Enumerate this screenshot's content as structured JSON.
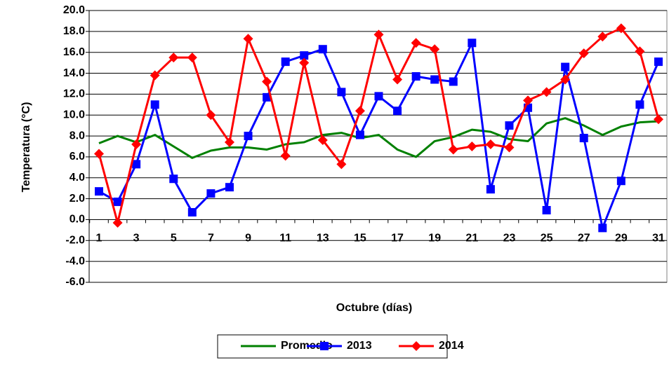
{
  "chart_data": {
    "type": "line",
    "y_label": "Temperatura (°C)",
    "x_label": "Octubre (días)",
    "categories": [
      "1",
      null,
      "3",
      null,
      "5",
      null,
      "7",
      null,
      "9",
      null,
      "11",
      null,
      "13",
      null,
      "15",
      null,
      "17",
      null,
      "19",
      null,
      "21",
      null,
      "23",
      null,
      "25",
      null,
      "27",
      null,
      "29",
      null,
      "31"
    ],
    "series": [
      {
        "name": "Promedio",
        "color": "#008000",
        "marker": "none",
        "values": [
          7.3,
          8.0,
          7.4,
          8.1,
          7.0,
          5.9,
          6.6,
          6.9,
          6.9,
          6.7,
          7.2,
          7.4,
          8.1,
          8.3,
          7.8,
          8.1,
          6.7,
          6.0,
          7.5,
          7.9,
          8.6,
          8.4,
          7.7,
          7.5,
          9.2,
          9.7,
          9.0,
          8.1,
          8.9,
          9.3,
          9.4
        ]
      },
      {
        "name": "2013",
        "color": "#0000ff",
        "marker": "square",
        "values": [
          2.7,
          1.7,
          5.3,
          11.0,
          3.9,
          0.7,
          2.5,
          3.1,
          8.0,
          11.7,
          15.1,
          15.7,
          16.3,
          12.2,
          8.1,
          11.8,
          10.4,
          13.7,
          13.4,
          13.2,
          16.9,
          2.9,
          9.0,
          10.7,
          0.9,
          14.6,
          7.8,
          -0.8,
          3.7,
          11.0,
          15.1
        ]
      },
      {
        "name": "2014",
        "color": "#ff0000",
        "marker": "diamond",
        "values": [
          6.3,
          -0.3,
          7.2,
          13.8,
          15.5,
          15.5,
          10.0,
          7.4,
          17.3,
          13.2,
          6.1,
          15.0,
          7.6,
          5.3,
          10.4,
          17.7,
          13.4,
          16.9,
          16.3,
          6.7,
          7.0,
          7.2,
          6.9,
          11.4,
          12.2,
          13.4,
          15.9,
          17.5,
          18.3,
          16.1,
          9.6
        ]
      }
    ],
    "ylim": [
      -6,
      20
    ],
    "yticks": [
      {
        "value": -6,
        "label": "-6.0"
      },
      {
        "value": -4,
        "label": "-4.0"
      },
      {
        "value": -2,
        "label": "-2.0"
      },
      {
        "value": 0,
        "label": "0.0"
      },
      {
        "value": 2,
        "label": "2.0"
      },
      {
        "value": 4,
        "label": "4.0"
      },
      {
        "value": 6,
        "label": "6.0"
      },
      {
        "value": 8,
        "label": "8.0"
      },
      {
        "value": 10,
        "label": "10.0"
      },
      {
        "value": 12,
        "label": "12.0"
      },
      {
        "value": 14,
        "label": "14.0"
      },
      {
        "value": 16,
        "label": "16.0"
      },
      {
        "value": 18,
        "label": "18.0"
      },
      {
        "value": 20,
        "label": "20.0"
      }
    ],
    "grid": true,
    "legend": "bottom"
  }
}
